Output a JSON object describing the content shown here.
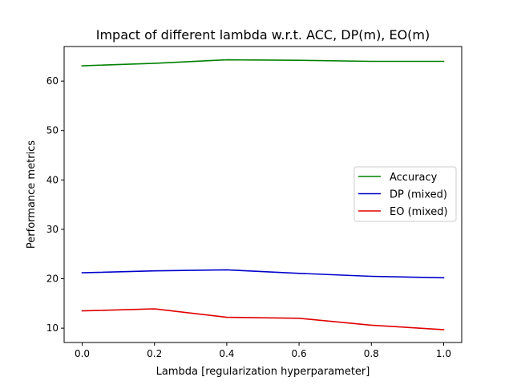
{
  "chart_data": {
    "type": "line",
    "title": "Impact of different lambda w.r.t. ACC, DP(m), EO(m)",
    "xlabel": "Lambda [regularization hyperparameter]",
    "ylabel": "Performance metrics",
    "xlim": [
      -0.05,
      1.05
    ],
    "ylim": [
      7.1,
      67.0
    ],
    "xticks": [
      0.0,
      0.2,
      0.4,
      0.6,
      0.8,
      1.0
    ],
    "xtick_labels": [
      "0.0",
      "0.2",
      "0.4",
      "0.6",
      "0.8",
      "1.0"
    ],
    "yticks": [
      10,
      20,
      30,
      40,
      50,
      60
    ],
    "ytick_labels": [
      "10",
      "20",
      "30",
      "40",
      "50",
      "60"
    ],
    "x": [
      0.0,
      0.2,
      0.4,
      0.6,
      0.8,
      1.0
    ],
    "series": [
      {
        "name": "Accuracy",
        "color": "#008000",
        "values": [
          63.1,
          63.6,
          64.3,
          64.2,
          64.0,
          64.0
        ]
      },
      {
        "name": "DP (mixed)",
        "color": "#0000cc",
        "values": [
          21.2,
          21.6,
          21.8,
          21.1,
          20.5,
          20.2
        ]
      },
      {
        "name": "EO (mixed)",
        "color": "#e00000",
        "values": [
          13.5,
          13.9,
          12.2,
          12.0,
          10.6,
          9.7
        ]
      }
    ],
    "grid": false,
    "legend_position": "center-right"
  }
}
